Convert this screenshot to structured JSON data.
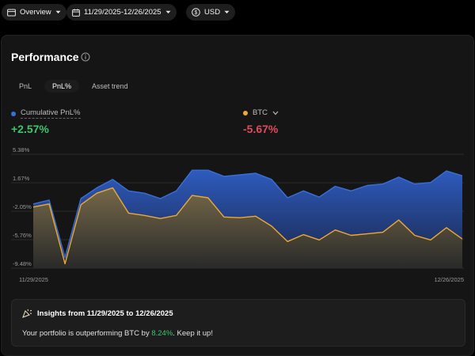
{
  "topbar": {
    "view_label": "Overview",
    "date_range": "11/29/2025-12/26/2025",
    "currency": "USD"
  },
  "card": {
    "title": "Performance",
    "tabs": [
      {
        "label": "PnL",
        "active": false
      },
      {
        "label": "PnL%",
        "active": true
      },
      {
        "label": "Asset trend",
        "active": false
      }
    ],
    "series_a": {
      "label": "Cumulative PnL%",
      "value": "+2.57%",
      "color": "#3a6fd8"
    },
    "series_b": {
      "label": "BTC",
      "value": "-5.67%",
      "color": "#f0a830"
    }
  },
  "chart_data": {
    "type": "area",
    "y_ticks": [
      "5.38%",
      "1.67%",
      "-2.05%",
      "-5.76%",
      "-9.48%"
    ],
    "ylim": [
      -9.48,
      5.38
    ],
    "x_tick_labels": [
      "11/29/2025",
      "12/26/2025"
    ],
    "x": [
      "11/29/2025",
      "11/30/2025",
      "12/01/2025",
      "12/02/2025",
      "12/03/2025",
      "12/04/2025",
      "12/05/2025",
      "12/06/2025",
      "12/07/2025",
      "12/08/2025",
      "12/09/2025",
      "12/10/2025",
      "12/11/2025",
      "12/12/2025",
      "12/13/2025",
      "12/14/2025",
      "12/15/2025",
      "12/16/2025",
      "12/17/2025",
      "12/18/2025",
      "12/19/2025",
      "12/20/2025",
      "12/21/2025",
      "12/22/2025",
      "12/23/2025",
      "12/24/2025",
      "12/25/2025",
      "12/26/2025"
    ],
    "series": [
      {
        "name": "Cumulative PnL%",
        "color": "#3a6fd8",
        "values": [
          -1.1,
          -0.6,
          -8.1,
          -0.4,
          1.0,
          2.1,
          0.6,
          0.3,
          -0.4,
          0.6,
          3.3,
          3.3,
          2.5,
          2.7,
          2.9,
          2.1,
          -0.3,
          0.6,
          -0.2,
          1.2,
          0.6,
          1.3,
          1.5,
          2.4,
          1.5,
          1.7,
          3.2,
          2.57
        ]
      },
      {
        "name": "BTC",
        "color": "#f0a830",
        "values": [
          -1.5,
          -1.1,
          -8.9,
          -1.2,
          0.3,
          1.0,
          -2.3,
          -2.6,
          -3.0,
          -2.6,
          0.0,
          -0.3,
          -2.8,
          -2.9,
          -2.7,
          -4.0,
          -6.0,
          -5.1,
          -5.8,
          -4.5,
          -5.2,
          -5.0,
          -4.8,
          -3.2,
          -5.2,
          -5.8,
          -4.2,
          -5.67
        ]
      }
    ],
    "grid": true
  },
  "insights": {
    "title": "Insights from 11/29/2025 to 12/26/2025",
    "text_before": "Your portfolio is outperforming BTC by ",
    "highlight": "8.24%",
    "text_after": ". Keep it up!"
  }
}
